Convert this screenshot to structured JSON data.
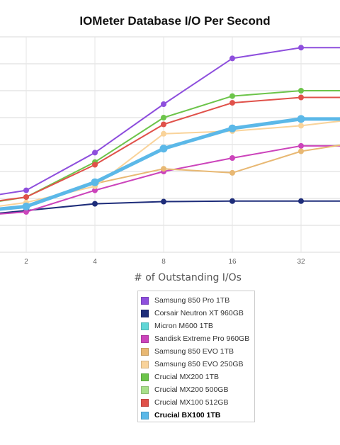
{
  "chart_data": {
    "type": "line",
    "title": "IOMeter Database I/O Per Second",
    "xlabel": "# of Outstanding I/Os",
    "ylabel": "",
    "x": [
      1,
      2,
      4,
      8,
      16,
      32,
      64
    ],
    "x_tick_labels": [
      "2",
      "4",
      "8",
      "16",
      "32"
    ],
    "x_scale": "log2",
    "ylim": [
      0,
      9
    ],
    "grid": true,
    "legend_position": "bottom",
    "series": [
      {
        "name": "Samsung 850 Pro 1TB",
        "color": "#8e4fdd",
        "values": [
          1.9,
          2.3,
          3.7,
          5.5,
          7.2,
          7.6,
          7.6
        ]
      },
      {
        "name": "Corsair Neutron XT 960GB",
        "color": "#1e2d7a",
        "values": [
          1.3,
          1.55,
          1.8,
          1.88,
          1.9,
          1.9,
          1.9
        ]
      },
      {
        "name": "Micron M600 1TB",
        "color": "#5fd6d6",
        "values": [
          null,
          null,
          null,
          null,
          null,
          null,
          null
        ]
      },
      {
        "name": "Sandisk Extreme Pro 960GB",
        "color": "#cc44bb",
        "values": [
          1.3,
          1.5,
          2.3,
          3.0,
          3.5,
          3.95,
          3.95
        ]
      },
      {
        "name": "Samsung 850 EVO 1TB",
        "color": "#e8b873",
        "values": [
          1.5,
          1.7,
          2.55,
          3.1,
          2.95,
          3.75,
          4.15
        ]
      },
      {
        "name": "Samsung 850 EVO 250GB",
        "color": "#f9d39a",
        "values": [
          1.5,
          1.85,
          2.45,
          4.4,
          4.5,
          4.7,
          5.0
        ]
      },
      {
        "name": "Crucial MX200 1TB",
        "color": "#6cc44a",
        "values": [
          1.65,
          2.05,
          3.35,
          5.0,
          5.8,
          6.0,
          6.0
        ]
      },
      {
        "name": "Crucial MX200 500GB",
        "color": "#a8e08a",
        "values": [
          null,
          null,
          null,
          null,
          null,
          null,
          null
        ]
      },
      {
        "name": "Crucial MX100 512GB",
        "color": "#e0514a",
        "values": [
          1.7,
          2.05,
          3.25,
          4.75,
          5.55,
          5.75,
          5.75
        ]
      },
      {
        "name": "Crucial BX100 1TB",
        "color": "#5bb8e8",
        "values": [
          1.45,
          1.7,
          2.6,
          3.85,
          4.6,
          4.95,
          4.95
        ]
      }
    ],
    "highlighted_series": "Crucial BX100 1TB"
  }
}
